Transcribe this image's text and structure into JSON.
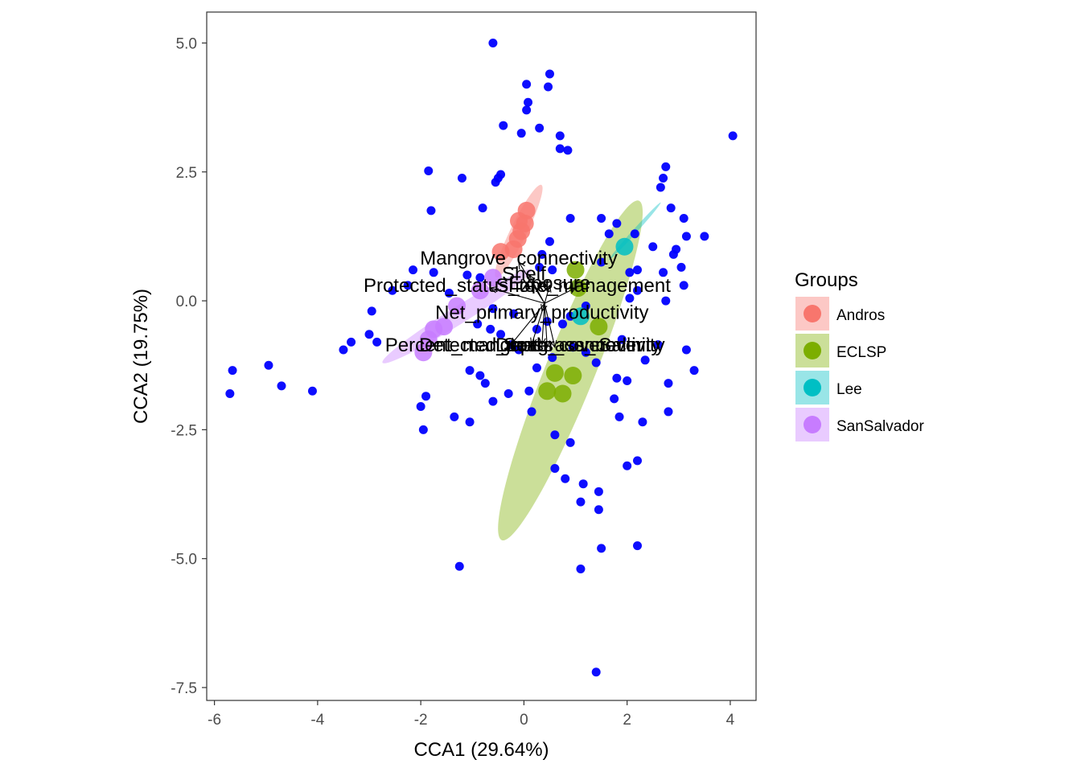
{
  "chart_data": {
    "type": "scatter",
    "title": "",
    "xlabel": "CCA1 (29.64%)",
    "ylabel": "CCA2 (19.75%)",
    "xlim": [
      -6.15,
      4.5
    ],
    "ylim": [
      -7.75,
      5.6
    ],
    "x_ticks": [
      {
        "value": -6,
        "label": "-6"
      },
      {
        "value": -4,
        "label": "-4"
      },
      {
        "value": -2,
        "label": "-2"
      },
      {
        "value": 0,
        "label": "0"
      },
      {
        "value": 2,
        "label": "2"
      },
      {
        "value": 4,
        "label": "4"
      }
    ],
    "y_ticks": [
      {
        "value": 5.0,
        "label": "5.0"
      },
      {
        "value": 2.5,
        "label": "2.5"
      },
      {
        "value": 0.0,
        "label": "0.0"
      },
      {
        "value": -2.5,
        "label": "-2.5"
      },
      {
        "value": -5.0,
        "label": "-5.0"
      },
      {
        "value": -7.5,
        "label": "-7.5"
      }
    ],
    "grid": false,
    "legend_position": "right",
    "legend": {
      "title": "Groups",
      "entries": [
        {
          "name": "Andros",
          "color": "#F8766D"
        },
        {
          "name": "ECLSP",
          "color": "#7CAE00"
        },
        {
          "name": "Lee",
          "color": "#00BFC4"
        },
        {
          "name": "SanSalvador",
          "color": "#C77CFF"
        }
      ]
    },
    "species_color": "#0000FF",
    "species_points": [
      {
        "x": -0.6,
        "y": 5.0
      },
      {
        "x": 0.05,
        "y": 4.2
      },
      {
        "x": 0.5,
        "y": 4.4
      },
      {
        "x": 0.47,
        "y": 4.15
      },
      {
        "x": 0.08,
        "y": 3.85
      },
      {
        "x": 0.05,
        "y": 3.7
      },
      {
        "x": -0.4,
        "y": 3.4
      },
      {
        "x": 0.3,
        "y": 3.35
      },
      {
        "x": -0.05,
        "y": 3.25
      },
      {
        "x": 0.7,
        "y": 3.2
      },
      {
        "x": 0.7,
        "y": 2.95
      },
      {
        "x": 0.85,
        "y": 2.92
      },
      {
        "x": 4.05,
        "y": 3.2
      },
      {
        "x": -1.85,
        "y": 2.52
      },
      {
        "x": -1.2,
        "y": 2.38
      },
      {
        "x": -0.45,
        "y": 2.45
      },
      {
        "x": -0.5,
        "y": 2.38
      },
      {
        "x": -0.55,
        "y": 2.3
      },
      {
        "x": 2.75,
        "y": 2.6
      },
      {
        "x": 2.7,
        "y": 2.38
      },
      {
        "x": 2.65,
        "y": 2.2
      },
      {
        "x": 2.85,
        "y": 1.8
      },
      {
        "x": -1.8,
        "y": 1.75
      },
      {
        "x": -0.8,
        "y": 1.8
      },
      {
        "x": 0.9,
        "y": 1.6
      },
      {
        "x": 1.5,
        "y": 1.6
      },
      {
        "x": 1.8,
        "y": 1.5
      },
      {
        "x": 3.1,
        "y": 1.6
      },
      {
        "x": 1.65,
        "y": 1.3
      },
      {
        "x": 2.15,
        "y": 1.3
      },
      {
        "x": 3.15,
        "y": 1.25
      },
      {
        "x": 3.5,
        "y": 1.25
      },
      {
        "x": 2.5,
        "y": 1.05
      },
      {
        "x": 2.95,
        "y": 1.0
      },
      {
        "x": 2.9,
        "y": 0.9
      },
      {
        "x": 0.5,
        "y": 1.15
      },
      {
        "x": 0.35,
        "y": 0.9
      },
      {
        "x": 0.3,
        "y": 0.65
      },
      {
        "x": 0.55,
        "y": 0.6
      },
      {
        "x": 1.5,
        "y": 0.75
      },
      {
        "x": -2.15,
        "y": 0.6
      },
      {
        "x": -1.75,
        "y": 0.55
      },
      {
        "x": 2.7,
        "y": 0.55
      },
      {
        "x": 3.05,
        "y": 0.65
      },
      {
        "x": 1.0,
        "y": 0.3
      },
      {
        "x": 2.05,
        "y": 0.55
      },
      {
        "x": 2.2,
        "y": 0.6
      },
      {
        "x": -2.25,
        "y": 0.3
      },
      {
        "x": -1.1,
        "y": 0.5
      },
      {
        "x": -0.85,
        "y": 0.45
      },
      {
        "x": 3.1,
        "y": 0.3
      },
      {
        "x": -2.55,
        "y": 0.2
      },
      {
        "x": -1.45,
        "y": 0.15
      },
      {
        "x": 2.2,
        "y": 0.2
      },
      {
        "x": 2.05,
        "y": 0.05
      },
      {
        "x": 2.75,
        "y": 0.0
      },
      {
        "x": -2.95,
        "y": -0.2
      },
      {
        "x": -0.6,
        "y": -0.15
      },
      {
        "x": 1.2,
        "y": -0.1
      },
      {
        "x": -0.9,
        "y": -0.45
      },
      {
        "x": -0.65,
        "y": -0.55
      },
      {
        "x": -0.45,
        "y": -0.65
      },
      {
        "x": 0.25,
        "y": -0.55
      },
      {
        "x": -3.0,
        "y": -0.65
      },
      {
        "x": -2.85,
        "y": -0.8
      },
      {
        "x": -3.35,
        "y": -0.8
      },
      {
        "x": -3.5,
        "y": -0.95
      },
      {
        "x": 1.9,
        "y": -0.75
      },
      {
        "x": 2.6,
        "y": -0.85
      },
      {
        "x": -0.25,
        "y": -0.85
      },
      {
        "x": 0.95,
        "y": -0.9
      },
      {
        "x": 1.2,
        "y": -1.0
      },
      {
        "x": -0.1,
        "y": -0.95
      },
      {
        "x": 3.15,
        "y": -0.95
      },
      {
        "x": 2.35,
        "y": -1.15
      },
      {
        "x": 1.4,
        "y": -1.2
      },
      {
        "x": 0.55,
        "y": -1.1
      },
      {
        "x": 0.25,
        "y": -1.3
      },
      {
        "x": -1.05,
        "y": -1.35
      },
      {
        "x": -0.85,
        "y": -1.45
      },
      {
        "x": -0.75,
        "y": -1.6
      },
      {
        "x": 1.8,
        "y": -1.5
      },
      {
        "x": 2.0,
        "y": -1.55
      },
      {
        "x": 2.8,
        "y": -1.6
      },
      {
        "x": 3.3,
        "y": -1.35
      },
      {
        "x": -5.65,
        "y": -1.35
      },
      {
        "x": -4.95,
        "y": -1.25
      },
      {
        "x": -4.7,
        "y": -1.65
      },
      {
        "x": -4.1,
        "y": -1.75
      },
      {
        "x": -5.7,
        "y": -1.8
      },
      {
        "x": -0.3,
        "y": -1.8
      },
      {
        "x": -0.6,
        "y": -1.95
      },
      {
        "x": 0.1,
        "y": -1.75
      },
      {
        "x": 1.75,
        "y": -1.9
      },
      {
        "x": -1.9,
        "y": -1.85
      },
      {
        "x": -2.0,
        "y": -2.05
      },
      {
        "x": -1.35,
        "y": -2.25
      },
      {
        "x": 1.85,
        "y": -2.25
      },
      {
        "x": 2.3,
        "y": -2.35
      },
      {
        "x": 2.8,
        "y": -2.15
      },
      {
        "x": 0.15,
        "y": -2.15
      },
      {
        "x": -1.05,
        "y": -2.35
      },
      {
        "x": 0.6,
        "y": -2.6
      },
      {
        "x": -1.95,
        "y": -2.5
      },
      {
        "x": 0.9,
        "y": -2.75
      },
      {
        "x": 2.0,
        "y": -3.2
      },
      {
        "x": 2.2,
        "y": -3.1
      },
      {
        "x": 0.6,
        "y": -3.25
      },
      {
        "x": 0.8,
        "y": -3.45
      },
      {
        "x": 1.15,
        "y": -3.55
      },
      {
        "x": 1.45,
        "y": -3.7
      },
      {
        "x": 1.1,
        "y": -3.9
      },
      {
        "x": 1.45,
        "y": -4.05
      },
      {
        "x": 1.5,
        "y": -4.8
      },
      {
        "x": 2.2,
        "y": -4.75
      },
      {
        "x": -1.25,
        "y": -5.15
      },
      {
        "x": 1.1,
        "y": -5.2
      },
      {
        "x": 1.4,
        "y": -7.2
      },
      {
        "x": 0.45,
        "y": -0.4
      },
      {
        "x": 0.75,
        "y": -0.45
      },
      {
        "x": -0.2,
        "y": -0.25
      },
      {
        "x": 0.9,
        "y": -0.3
      }
    ],
    "group_points": [
      {
        "group": "Andros",
        "x": 0.05,
        "y": 1.75
      },
      {
        "group": "Andros",
        "x": 0.02,
        "y": 1.5
      },
      {
        "group": "Andros",
        "x": -0.05,
        "y": 1.35
      },
      {
        "group": "Andros",
        "x": -0.12,
        "y": 1.2
      },
      {
        "group": "Andros",
        "x": -0.2,
        "y": 1.0
      },
      {
        "group": "Andros",
        "x": -0.45,
        "y": 0.95
      },
      {
        "group": "Andros",
        "x": -0.1,
        "y": 1.55
      },
      {
        "group": "ECLSP",
        "x": 1.0,
        "y": 0.6
      },
      {
        "group": "ECLSP",
        "x": 1.05,
        "y": 0.25
      },
      {
        "group": "ECLSP",
        "x": 1.45,
        "y": -0.5
      },
      {
        "group": "ECLSP",
        "x": 0.6,
        "y": -1.4
      },
      {
        "group": "ECLSP",
        "x": 0.45,
        "y": -1.75
      },
      {
        "group": "ECLSP",
        "x": 0.75,
        "y": -1.8
      },
      {
        "group": "ECLSP",
        "x": 0.95,
        "y": -1.45
      },
      {
        "group": "Lee",
        "x": 1.95,
        "y": 1.05
      },
      {
        "group": "Lee",
        "x": 1.1,
        "y": -0.3
      },
      {
        "group": "SanSalvador",
        "x": -1.55,
        "y": -0.5
      },
      {
        "group": "SanSalvador",
        "x": -1.75,
        "y": -0.55
      },
      {
        "group": "SanSalvador",
        "x": -1.85,
        "y": -0.75
      },
      {
        "group": "SanSalvador",
        "x": -1.95,
        "y": -1.0
      },
      {
        "group": "SanSalvador",
        "x": -1.3,
        "y": -0.1
      },
      {
        "group": "SanSalvador",
        "x": -0.85,
        "y": 0.2
      },
      {
        "group": "SanSalvador",
        "x": -0.6,
        "y": 0.45
      }
    ],
    "ellipses": [
      {
        "group": "Andros",
        "cx": -0.1,
        "cy": 1.35,
        "rx_data": 1.0,
        "ry_data": 0.16,
        "angle_deg": -64
      },
      {
        "group": "ECLSP",
        "cx": 0.9,
        "cy": -1.35,
        "rx_data": 3.55,
        "ry_data": 0.48,
        "angle_deg": -68
      },
      {
        "group": "SanSalvador",
        "cx": -1.3,
        "cy": -0.3,
        "rx_data": 1.7,
        "ry_data": 0.17,
        "angle_deg": -32
      },
      {
        "group": "Lee",
        "cx": 2.15,
        "cy": 1.35,
        "rx_data": 0.75,
        "ry_data": 0.04,
        "angle_deg": -48
      }
    ],
    "arrow_origin": {
      "x": 0.4,
      "y": -0.05
    },
    "biplot_arrows": [
      {
        "label": "Mangrove_connectivity",
        "x": -0.1,
        "y": 0.75,
        "text_x": -0.1,
        "text_y": 0.8
      },
      {
        "label": "Protected_status_text",
        "x": -0.65,
        "y": 0.25,
        "text_x": -1.3,
        "text_y": 0.27
      },
      {
        "label": "Shore_management",
        "x": 1.0,
        "y": 0.25,
        "text_x": 1.15,
        "text_y": 0.27
      },
      {
        "label": "Shelf",
        "x": 0.1,
        "y": 0.5,
        "text_x": 0.0,
        "text_y": 0.5
      },
      {
        "label": "Exposure",
        "x": 0.5,
        "y": 0.3,
        "text_x": 0.5,
        "text_y": 0.32
      },
      {
        "label": "Net_primary_productivity",
        "x": 0.35,
        "y": -0.2,
        "text_x": 0.35,
        "text_y": -0.25
      },
      {
        "label": "Percent_mangrove_cover",
        "x": -0.25,
        "y": -0.85,
        "text_x": -0.55,
        "text_y": -0.88
      },
      {
        "label": "Detected_mass_connectivity",
        "x": 0.35,
        "y": -0.85,
        "text_x": 0.35,
        "text_y": -0.88
      },
      {
        "label": "Depth",
        "x": 0.15,
        "y": -0.85,
        "text_x": -0.05,
        "text_y": -0.88
      },
      {
        "label": "Seagrass_cover",
        "x": 0.45,
        "y": -0.9,
        "text_x": 0.95,
        "text_y": -0.88
      },
      {
        "label": "Salinity",
        "x": 0.6,
        "y": -0.9,
        "text_x": 2.05,
        "text_y": -0.88
      }
    ]
  }
}
